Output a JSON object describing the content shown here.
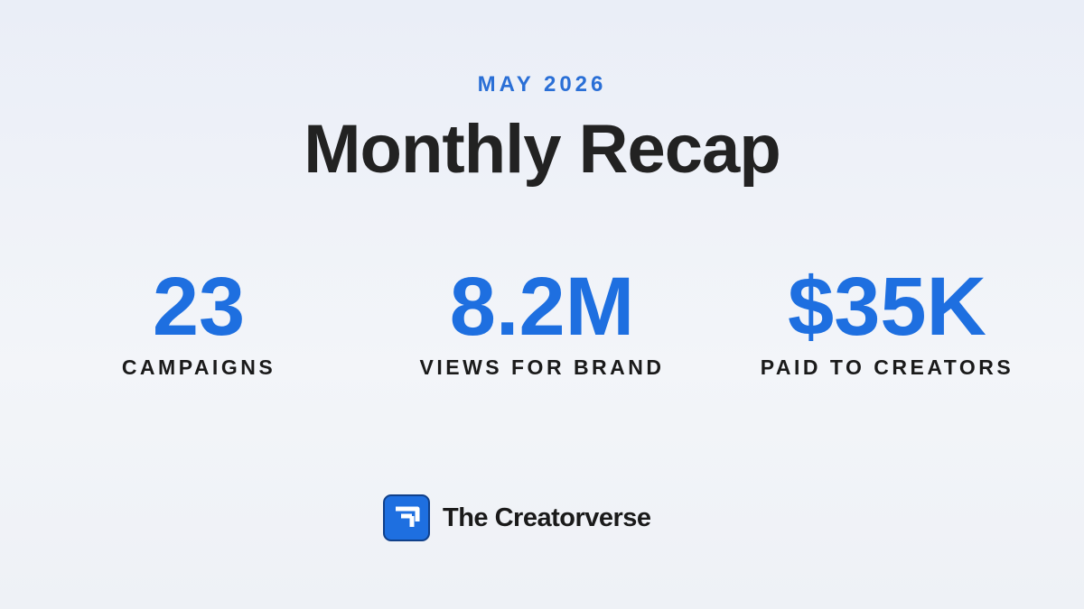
{
  "header": {
    "period": "MAY 2026",
    "title": "Monthly Recap"
  },
  "stats": [
    {
      "value": "23",
      "label": "CAMPAIGNS"
    },
    {
      "value": "8.2M",
      "label": "VIEWS FOR BRAND"
    },
    {
      "value": "$35K",
      "label": "PAID TO CREATORS"
    }
  ],
  "brand": {
    "name": "The Creatorverse"
  }
}
